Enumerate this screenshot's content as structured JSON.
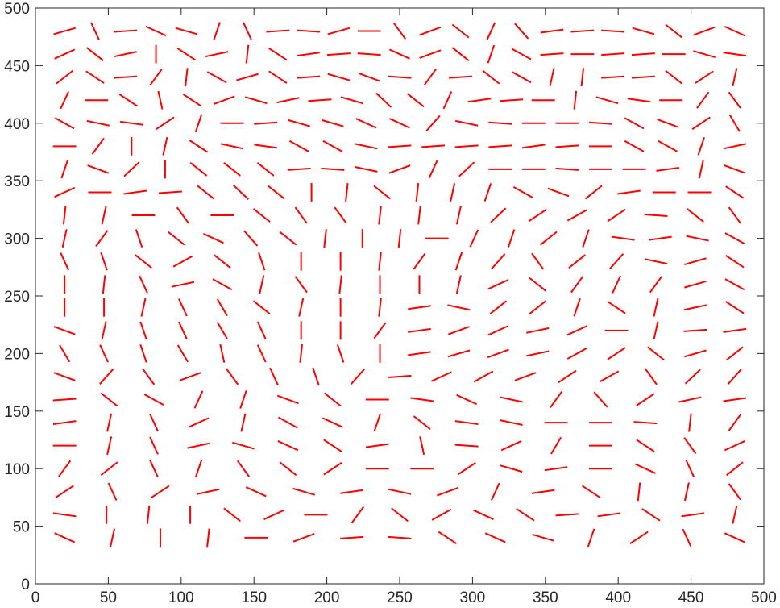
{
  "chart_data": {
    "type": "quiver",
    "title": "",
    "xlabel": "",
    "ylabel": "",
    "xlim": [
      0,
      500
    ],
    "ylim": [
      0,
      500
    ],
    "xticks": [
      "0",
      "50",
      "100",
      "150",
      "200",
      "250",
      "300",
      "350",
      "400",
      "450",
      "500"
    ],
    "yticks": [
      "0",
      "50",
      "100",
      "150",
      "200",
      "250",
      "300",
      "350",
      "400",
      "450",
      "500"
    ],
    "grid": false,
    "line_color": "#ff0000",
    "grid_spacing": 20,
    "grid_start": 20,
    "grid_end": 480,
    "segment_half_length": 8,
    "field": "orientation angles in degrees, rows listed from y=480 down to y=20, columns x=20..480"
  },
  "orientation_rows": [
    [
      20,
      -70,
      5,
      -30,
      -20,
      75,
      -70,
      5,
      -5,
      20,
      0,
      -60,
      25,
      -45,
      70,
      -55,
      10,
      5,
      -5,
      -20,
      -45,
      25,
      -30
    ],
    [
      30,
      -45,
      15,
      90,
      -40,
      15,
      85,
      -40,
      10,
      5,
      -5,
      -30,
      25,
      -45,
      75,
      -35,
      5,
      0,
      5,
      5,
      0,
      -20,
      -10
    ],
    [
      45,
      -40,
      5,
      60,
      85,
      -35,
      20,
      -40,
      5,
      -20,
      -25,
      -5,
      60,
      5,
      -45,
      -35,
      80,
      85,
      5,
      5,
      -45,
      40,
      80
    ],
    [
      70,
      0,
      -40,
      -80,
      -40,
      25,
      -20,
      15,
      5,
      -20,
      -50,
      -45,
      70,
      10,
      5,
      0,
      85,
      -20,
      -10,
      0,
      60,
      -60
    ],
    [
      -35,
      -15,
      -10,
      40,
      75,
      0,
      5,
      -20,
      -20,
      -30,
      -30,
      55,
      -15,
      -5,
      0,
      0,
      -5,
      -35,
      -25,
      40,
      -65
    ],
    [
      0,
      60,
      90,
      80,
      -40,
      -15,
      -10,
      -35,
      -35,
      -15,
      5,
      5,
      5,
      5,
      10,
      5,
      0,
      -35,
      -35,
      75,
      15
    ],
    [
      75,
      -25,
      50,
      90,
      -45,
      -45,
      -45,
      5,
      -5,
      -15,
      25,
      70,
      50,
      0,
      0,
      -5,
      0,
      0,
      10,
      80,
      -25
    ],
    [
      30,
      0,
      10,
      5,
      -45,
      -50,
      -45,
      90,
      85,
      -45,
      85,
      80,
      75,
      -35,
      -25,
      45,
      10,
      0,
      0,
      -40
    ],
    [
      85,
      80,
      0,
      -60,
      0,
      -45,
      -60,
      -60,
      85,
      85,
      80,
      50,
      40,
      35,
      40,
      -5,
      -45,
      -60
    ],
    [
      80,
      60,
      -75,
      -45,
      -30,
      -55,
      -45,
      85,
      90,
      85,
      0,
      70,
      75,
      45,
      75,
      -10,
      10,
      -15,
      -35
    ],
    [
      -70,
      -75,
      -45,
      35,
      -45,
      -75,
      -90,
      90,
      85,
      60,
      75,
      55,
      -60,
      45,
      55,
      -15,
      20,
      -40
    ],
    [
      90,
      85,
      -70,
      15,
      -35,
      80,
      -60,
      85,
      90,
      90,
      80,
      30,
      -45,
      60,
      70,
      60,
      20,
      -35
    ],
    [
      90,
      90,
      80,
      -70,
      -65,
      -45,
      80,
      90,
      85,
      10,
      -15,
      45,
      45,
      75,
      -40,
      80,
      15,
      -40
    ],
    [
      -25,
      80,
      -75,
      -70,
      -65,
      -70,
      90,
      90,
      60,
      10,
      25,
      30,
      15,
      30,
      0,
      80,
      5,
      10
    ],
    [
      -65,
      -70,
      -75,
      -65,
      -80,
      -70,
      85,
      -75,
      90,
      10,
      20,
      25,
      15,
      35,
      40,
      -45,
      20,
      45
    ],
    [
      -25,
      55,
      -60,
      25,
      -60,
      -70,
      -75,
      55,
      5,
      30,
      35,
      25,
      40,
      35,
      -60,
      50,
      55
    ],
    [
      5,
      -45,
      -35,
      70,
      75,
      -25,
      -45,
      0,
      -10,
      -30,
      -15,
      60,
      -55,
      40,
      15,
      10
    ],
    [
      10,
      80,
      -70,
      30,
      80,
      -35,
      -30,
      75,
      -45,
      -10,
      -15,
      0,
      0,
      -5,
      85,
      60
    ],
    [
      0,
      80,
      -70,
      15,
      -20,
      -30,
      -40,
      10,
      -80,
      -5,
      30,
      65,
      0,
      -40,
      -60,
      30
    ],
    [
      60,
      45,
      -70,
      75,
      -60,
      -45,
      40,
      0,
      0,
      40,
      -20,
      10,
      0,
      -30,
      -70,
      45
    ],
    [
      40,
      -70,
      40,
      15,
      -30,
      -20,
      10,
      -15,
      25,
      70,
      10,
      -40,
      85,
      80,
      -60
    ],
    [
      -10,
      90,
      85,
      90,
      -45,
      30,
      0,
      60,
      -45,
      35,
      -30,
      -40,
      5,
      10,
      -40,
      10,
      80
    ],
    [
      -30,
      80,
      90,
      85,
      0,
      25,
      5,
      -5,
      -40,
      -30,
      -20,
      75,
      40,
      -70,
      -30
    ]
  ]
}
